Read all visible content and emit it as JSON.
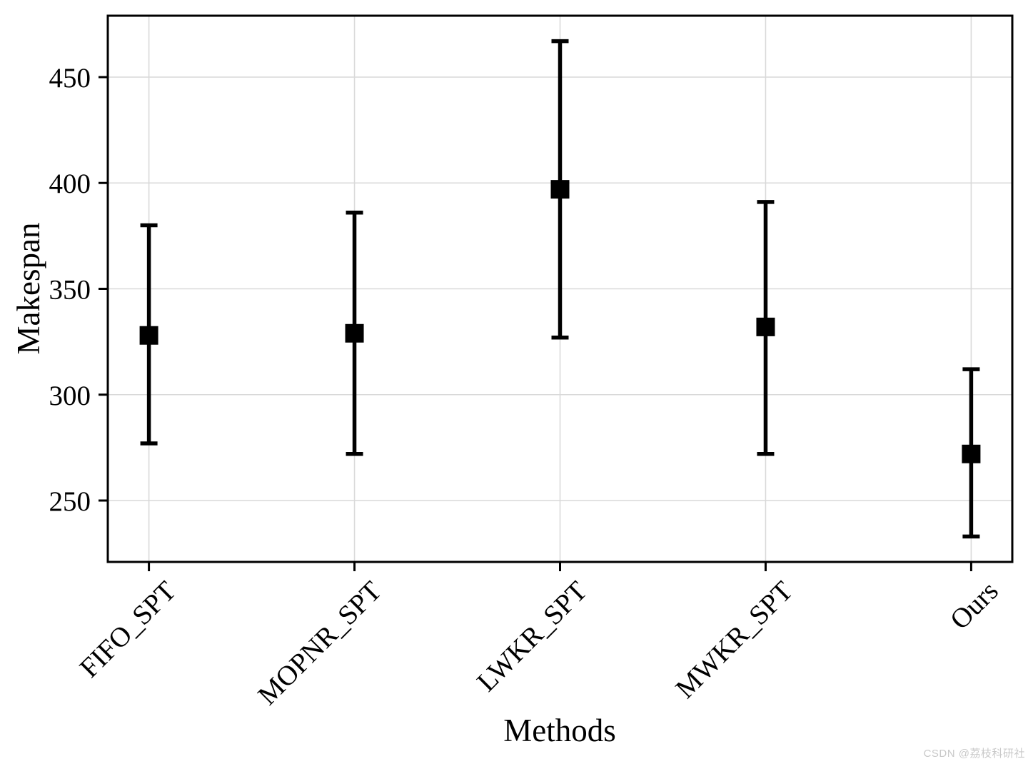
{
  "watermark": "CSDN @荔枝科研社",
  "chart_data": {
    "type": "scatter",
    "style": "errorbar",
    "title": "",
    "xlabel": "Methods",
    "ylabel": "Makespan",
    "categories": [
      "FIFO_SPT",
      "MOPNR_SPT",
      "LWKR_SPT",
      "MWKR_SPT",
      "Ours"
    ],
    "series": [
      {
        "name": "Makespan",
        "means": [
          328,
          329,
          397,
          332,
          272
        ],
        "upper": [
          380,
          386,
          467,
          391,
          312
        ],
        "lower": [
          277,
          272,
          327,
          272,
          233
        ]
      }
    ],
    "yticks": [
      250,
      300,
      350,
      400,
      450
    ],
    "ylim": [
      221,
      479
    ],
    "grid": true,
    "legend": "none",
    "marker": "square",
    "colors": {
      "data": "#000000",
      "grid": "#d9d9d9",
      "frame": "#000000",
      "text": "#000000",
      "watermark": "#c9c9c9"
    }
  }
}
